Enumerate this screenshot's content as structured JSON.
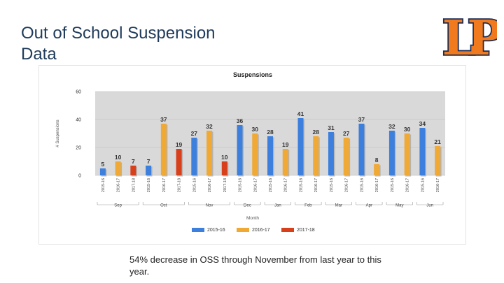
{
  "slide": {
    "title_line1": "Out of School Suspension",
    "title_line2": "Data",
    "logo_text": "LP",
    "caption": "54% decrease in OSS through November from last year to this year."
  },
  "colors": {
    "title": "#1f3b5a",
    "logo_orange": "#f07a1d",
    "logo_navy": "#1c2b52",
    "series_2015": "#3d7fdc",
    "series_2016": "#f0a935",
    "series_2017": "#d8401c",
    "plot_bg": "#d9d9d9"
  },
  "chart_data": {
    "type": "bar",
    "title": "Suspensions",
    "xlabel": "Month",
    "ylabel": "# Suspensions",
    "ylim": [
      0,
      60
    ],
    "yticks": [
      0,
      20,
      40,
      60
    ],
    "grid": true,
    "legend_position": "bottom",
    "series_names": [
      "2015-16",
      "2016-17",
      "2017-18"
    ],
    "months": [
      "Sep",
      "Oct",
      "Nov",
      "Dec",
      "Jan",
      "Feb",
      "Mar",
      "Apr",
      "May",
      "Jun"
    ],
    "bars": [
      {
        "month": "Sep",
        "series": "2015-16",
        "value": 5
      },
      {
        "month": "Sep",
        "series": "2016-17",
        "value": 10
      },
      {
        "month": "Sep",
        "series": "2017-18",
        "value": 7
      },
      {
        "month": "Oct",
        "series": "2015-16",
        "value": 7
      },
      {
        "month": "Oct",
        "series": "2016-17",
        "value": 37
      },
      {
        "month": "Oct",
        "series": "2017-18",
        "value": 19
      },
      {
        "month": "Nov",
        "series": "2015-16",
        "value": 27
      },
      {
        "month": "Nov",
        "series": "2016-17",
        "value": 32
      },
      {
        "month": "Nov",
        "series": "2017-18",
        "value": 10
      },
      {
        "month": "Dec",
        "series": "2015-16",
        "value": 36
      },
      {
        "month": "Dec",
        "series": "2016-17",
        "value": 30
      },
      {
        "month": "Jan",
        "series": "2015-16",
        "value": 28
      },
      {
        "month": "Jan",
        "series": "2016-17",
        "value": 19
      },
      {
        "month": "Feb",
        "series": "2015-16",
        "value": 41
      },
      {
        "month": "Feb",
        "series": "2016-17",
        "value": 28
      },
      {
        "month": "Mar",
        "series": "2015-16",
        "value": 31
      },
      {
        "month": "Mar",
        "series": "2016-17",
        "value": 27
      },
      {
        "month": "Apr",
        "series": "2015-16",
        "value": 37
      },
      {
        "month": "Apr",
        "series": "2016-17",
        "value": 8
      },
      {
        "month": "May",
        "series": "2015-16",
        "value": 32
      },
      {
        "month": "May",
        "series": "2016-17",
        "value": 30
      },
      {
        "month": "Jun",
        "series": "2015-16",
        "value": 34
      },
      {
        "month": "Jun",
        "series": "2016-17",
        "value": 21
      }
    ]
  }
}
